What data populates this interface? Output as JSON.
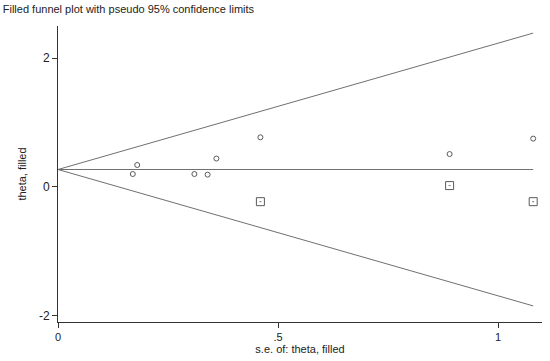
{
  "chart_data": {
    "type": "scatter",
    "title": "Filled funnel plot with pseudo 95% confidence limits",
    "x_label": "s.e. of: theta, filled",
    "y_label": "theta, filled",
    "xlim": [
      0,
      1.1
    ],
    "ylim": [
      -2.1,
      2.5
    ],
    "xticks": [
      0,
      {
        "value": 0.5,
        "label": ".5"
      },
      1
    ],
    "yticks": [
      -2,
      0,
      2
    ],
    "grid": false,
    "series": [
      {
        "type": "line",
        "color": "#707070",
        "line_style": "solid",
        "x": [
          0,
          1.08
        ],
        "values": [
          0.27,
          2.39
        ]
      },
      {
        "type": "line",
        "color": "#707070",
        "line_style": "solid",
        "x": [
          0,
          1.08
        ],
        "values": [
          0.27,
          -1.85
        ]
      },
      {
        "type": "line",
        "color": "#707070",
        "line_style": "solid",
        "x": [
          0,
          1.08
        ],
        "values": [
          0.27,
          0.27
        ]
      },
      {
        "type": "scatter",
        "color": "#5a5a5a",
        "marker": "circle",
        "x": [
          0.17,
          0.18,
          0.31,
          0.34,
          0.36,
          0.46,
          0.89,
          1.08
        ],
        "values": [
          0.2,
          0.34,
          0.2,
          0.19,
          0.44,
          0.77,
          0.51,
          0.75
        ]
      },
      {
        "type": "scatter",
        "color": "#5a5a5a",
        "marker": "square",
        "x": [
          0.46,
          0.89,
          1.08
        ],
        "values": [
          -0.23,
          0.02,
          -0.23
        ]
      }
    ]
  }
}
